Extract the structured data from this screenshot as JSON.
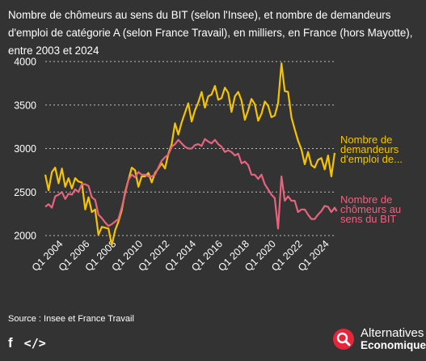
{
  "title": "Nombre de chômeurs au sens du BIT (selon l'Insee), et nombre de demandeurs d'emploi de catégorie A (selon France Travail), en milliers, en France (hors Mayotte), entre 2003 et 2024",
  "source": "Source : Insee et France Travail",
  "brand": {
    "line1": "Alternatives",
    "line2": "Economiques"
  },
  "share": {
    "facebook": "f",
    "embed": "</>"
  },
  "colors": {
    "background": "#333333",
    "demandeurs": "#f5c400",
    "chomeurs": "#e8647e",
    "grid": "#bdbdbd"
  },
  "chart_data": {
    "type": "line",
    "title": "",
    "xlabel": "",
    "ylabel": "",
    "ylim": [
      1850,
      4050
    ],
    "y_ticks": [
      2000,
      2500,
      3000,
      3500,
      4000
    ],
    "y_tick_labels": [
      "2000",
      "2500",
      "3000",
      "3500",
      "4000"
    ],
    "x_range": [
      2003.0,
      2024.75
    ],
    "x_ticks": [
      2004,
      2006,
      2008,
      2010,
      2012,
      2014,
      2016,
      2018,
      2020,
      2022,
      2024
    ],
    "x_tick_labels": [
      "Q1 2004",
      "Q1 2006",
      "Q1 2008",
      "Q1 2010",
      "Q1 2012",
      "Q1 2014",
      "Q1 2016",
      "Q1 2018",
      "Q1 2020",
      "Q1 2022",
      "Q1 2024"
    ],
    "grid": true,
    "legend": "right",
    "series": [
      {
        "name": "Nombre de demandeurs d'emploi de...",
        "label_lines": [
          "Nombre de",
          "demandeurs",
          "d'emploi de..."
        ],
        "color": "#f5c400",
        "points": [
          [
            2003.0,
            2700
          ],
          [
            2003.25,
            2520
          ],
          [
            2003.5,
            2730
          ],
          [
            2003.75,
            2780
          ],
          [
            2004.0,
            2600
          ],
          [
            2004.25,
            2770
          ],
          [
            2004.5,
            2560
          ],
          [
            2004.75,
            2660
          ],
          [
            2005.0,
            2540
          ],
          [
            2005.25,
            2660
          ],
          [
            2005.5,
            2620
          ],
          [
            2005.75,
            2610
          ],
          [
            2006.0,
            2300
          ],
          [
            2006.25,
            2440
          ],
          [
            2006.5,
            2270
          ],
          [
            2006.75,
            2300
          ],
          [
            2007.0,
            2010
          ],
          [
            2007.25,
            2100
          ],
          [
            2007.5,
            2090
          ],
          [
            2007.75,
            2080
          ],
          [
            2008.0,
            1890
          ],
          [
            2008.25,
            2060
          ],
          [
            2008.5,
            2160
          ],
          [
            2008.75,
            2290
          ],
          [
            2009.0,
            2500
          ],
          [
            2009.25,
            2640
          ],
          [
            2009.5,
            2780
          ],
          [
            2009.75,
            2750
          ],
          [
            2010.0,
            2560
          ],
          [
            2010.25,
            2680
          ],
          [
            2010.5,
            2680
          ],
          [
            2010.75,
            2720
          ],
          [
            2011.0,
            2610
          ],
          [
            2011.25,
            2720
          ],
          [
            2011.5,
            2770
          ],
          [
            2011.75,
            2830
          ],
          [
            2012.0,
            2770
          ],
          [
            2012.25,
            2940
          ],
          [
            2012.5,
            3050
          ],
          [
            2012.75,
            3290
          ],
          [
            2013.0,
            3160
          ],
          [
            2013.25,
            3300
          ],
          [
            2013.5,
            3410
          ],
          [
            2013.75,
            3520
          ],
          [
            2014.0,
            3310
          ],
          [
            2014.25,
            3440
          ],
          [
            2014.5,
            3530
          ],
          [
            2014.75,
            3650
          ],
          [
            2015.0,
            3470
          ],
          [
            2015.25,
            3600
          ],
          [
            2015.5,
            3620
          ],
          [
            2015.75,
            3720
          ],
          [
            2016.0,
            3560
          ],
          [
            2016.25,
            3580
          ],
          [
            2016.5,
            3700
          ],
          [
            2016.75,
            3640
          ],
          [
            2017.0,
            3420
          ],
          [
            2017.25,
            3600
          ],
          [
            2017.5,
            3650
          ],
          [
            2017.75,
            3550
          ],
          [
            2018.0,
            3330
          ],
          [
            2018.25,
            3440
          ],
          [
            2018.5,
            3570
          ],
          [
            2018.75,
            3510
          ],
          [
            2019.0,
            3320
          ],
          [
            2019.25,
            3400
          ],
          [
            2019.5,
            3540
          ],
          [
            2019.75,
            3490
          ],
          [
            2020.0,
            3360
          ],
          [
            2020.25,
            3380
          ],
          [
            2020.5,
            3520
          ],
          [
            2020.75,
            3980
          ],
          [
            2021.0,
            3660
          ],
          [
            2021.25,
            3650
          ],
          [
            2021.5,
            3360
          ],
          [
            2021.75,
            3220
          ],
          [
            2022.0,
            3090
          ],
          [
            2022.25,
            2990
          ],
          [
            2022.5,
            2820
          ],
          [
            2022.75,
            2960
          ],
          [
            2023.0,
            2810
          ],
          [
            2023.25,
            2780
          ],
          [
            2023.5,
            2870
          ],
          [
            2023.75,
            2890
          ],
          [
            2024.0,
            2760
          ],
          [
            2024.25,
            2920
          ],
          [
            2024.5,
            2680
          ],
          [
            2024.75,
            2950
          ]
        ]
      },
      {
        "name": "Nombre de chômeurs au sens du BIT",
        "label_lines": [
          "Nombre de",
          "chômeurs au",
          "sens du BIT"
        ],
        "color": "#e8647e",
        "points": [
          [
            2003.0,
            2330
          ],
          [
            2003.25,
            2360
          ],
          [
            2003.5,
            2320
          ],
          [
            2003.75,
            2450
          ],
          [
            2004.0,
            2470
          ],
          [
            2004.25,
            2500
          ],
          [
            2004.5,
            2420
          ],
          [
            2004.75,
            2480
          ],
          [
            2005.0,
            2470
          ],
          [
            2005.25,
            2530
          ],
          [
            2005.5,
            2500
          ],
          [
            2005.75,
            2590
          ],
          [
            2006.0,
            2590
          ],
          [
            2006.25,
            2570
          ],
          [
            2006.5,
            2440
          ],
          [
            2006.75,
            2410
          ],
          [
            2007.0,
            2240
          ],
          [
            2007.25,
            2200
          ],
          [
            2007.5,
            2150
          ],
          [
            2007.75,
            2110
          ],
          [
            2008.0,
            2130
          ],
          [
            2008.25,
            2160
          ],
          [
            2008.5,
            2190
          ],
          [
            2008.75,
            2320
          ],
          [
            2009.0,
            2480
          ],
          [
            2009.25,
            2640
          ],
          [
            2009.5,
            2700
          ],
          [
            2009.75,
            2670
          ],
          [
            2010.0,
            2730
          ],
          [
            2010.25,
            2700
          ],
          [
            2010.5,
            2700
          ],
          [
            2010.75,
            2680
          ],
          [
            2011.0,
            2680
          ],
          [
            2011.25,
            2700
          ],
          [
            2011.5,
            2780
          ],
          [
            2011.75,
            2860
          ],
          [
            2012.0,
            2900
          ],
          [
            2012.25,
            2930
          ],
          [
            2012.5,
            3020
          ],
          [
            2012.75,
            3050
          ],
          [
            2013.0,
            3100
          ],
          [
            2013.25,
            3060
          ],
          [
            2013.5,
            3020
          ],
          [
            2013.75,
            3000
          ],
          [
            2014.0,
            3000
          ],
          [
            2014.25,
            3040
          ],
          [
            2014.5,
            3050
          ],
          [
            2014.75,
            3030
          ],
          [
            2015.0,
            3110
          ],
          [
            2015.25,
            3080
          ],
          [
            2015.5,
            3060
          ],
          [
            2015.75,
            3100
          ],
          [
            2016.0,
            3050
          ],
          [
            2016.25,
            3020
          ],
          [
            2016.5,
            2960
          ],
          [
            2016.75,
            2980
          ],
          [
            2017.0,
            2960
          ],
          [
            2017.25,
            2920
          ],
          [
            2017.5,
            2940
          ],
          [
            2017.75,
            2830
          ],
          [
            2018.0,
            2850
          ],
          [
            2018.25,
            2810
          ],
          [
            2018.5,
            2700
          ],
          [
            2018.75,
            2700
          ],
          [
            2019.0,
            2650
          ],
          [
            2019.25,
            2700
          ],
          [
            2019.5,
            2590
          ],
          [
            2019.75,
            2530
          ],
          [
            2020.0,
            2470
          ],
          [
            2020.25,
            2430
          ],
          [
            2020.5,
            2080
          ],
          [
            2020.75,
            2680
          ],
          [
            2021.0,
            2400
          ],
          [
            2021.25,
            2450
          ],
          [
            2021.5,
            2400
          ],
          [
            2021.75,
            2400
          ],
          [
            2022.0,
            2270
          ],
          [
            2022.25,
            2300
          ],
          [
            2022.5,
            2300
          ],
          [
            2022.75,
            2240
          ],
          [
            2023.0,
            2190
          ],
          [
            2023.25,
            2190
          ],
          [
            2023.5,
            2240
          ],
          [
            2023.75,
            2280
          ],
          [
            2024.0,
            2340
          ],
          [
            2024.25,
            2330
          ],
          [
            2024.5,
            2270
          ],
          [
            2024.75,
            2320
          ],
          [
            2024.9,
            2280
          ]
        ]
      }
    ]
  }
}
